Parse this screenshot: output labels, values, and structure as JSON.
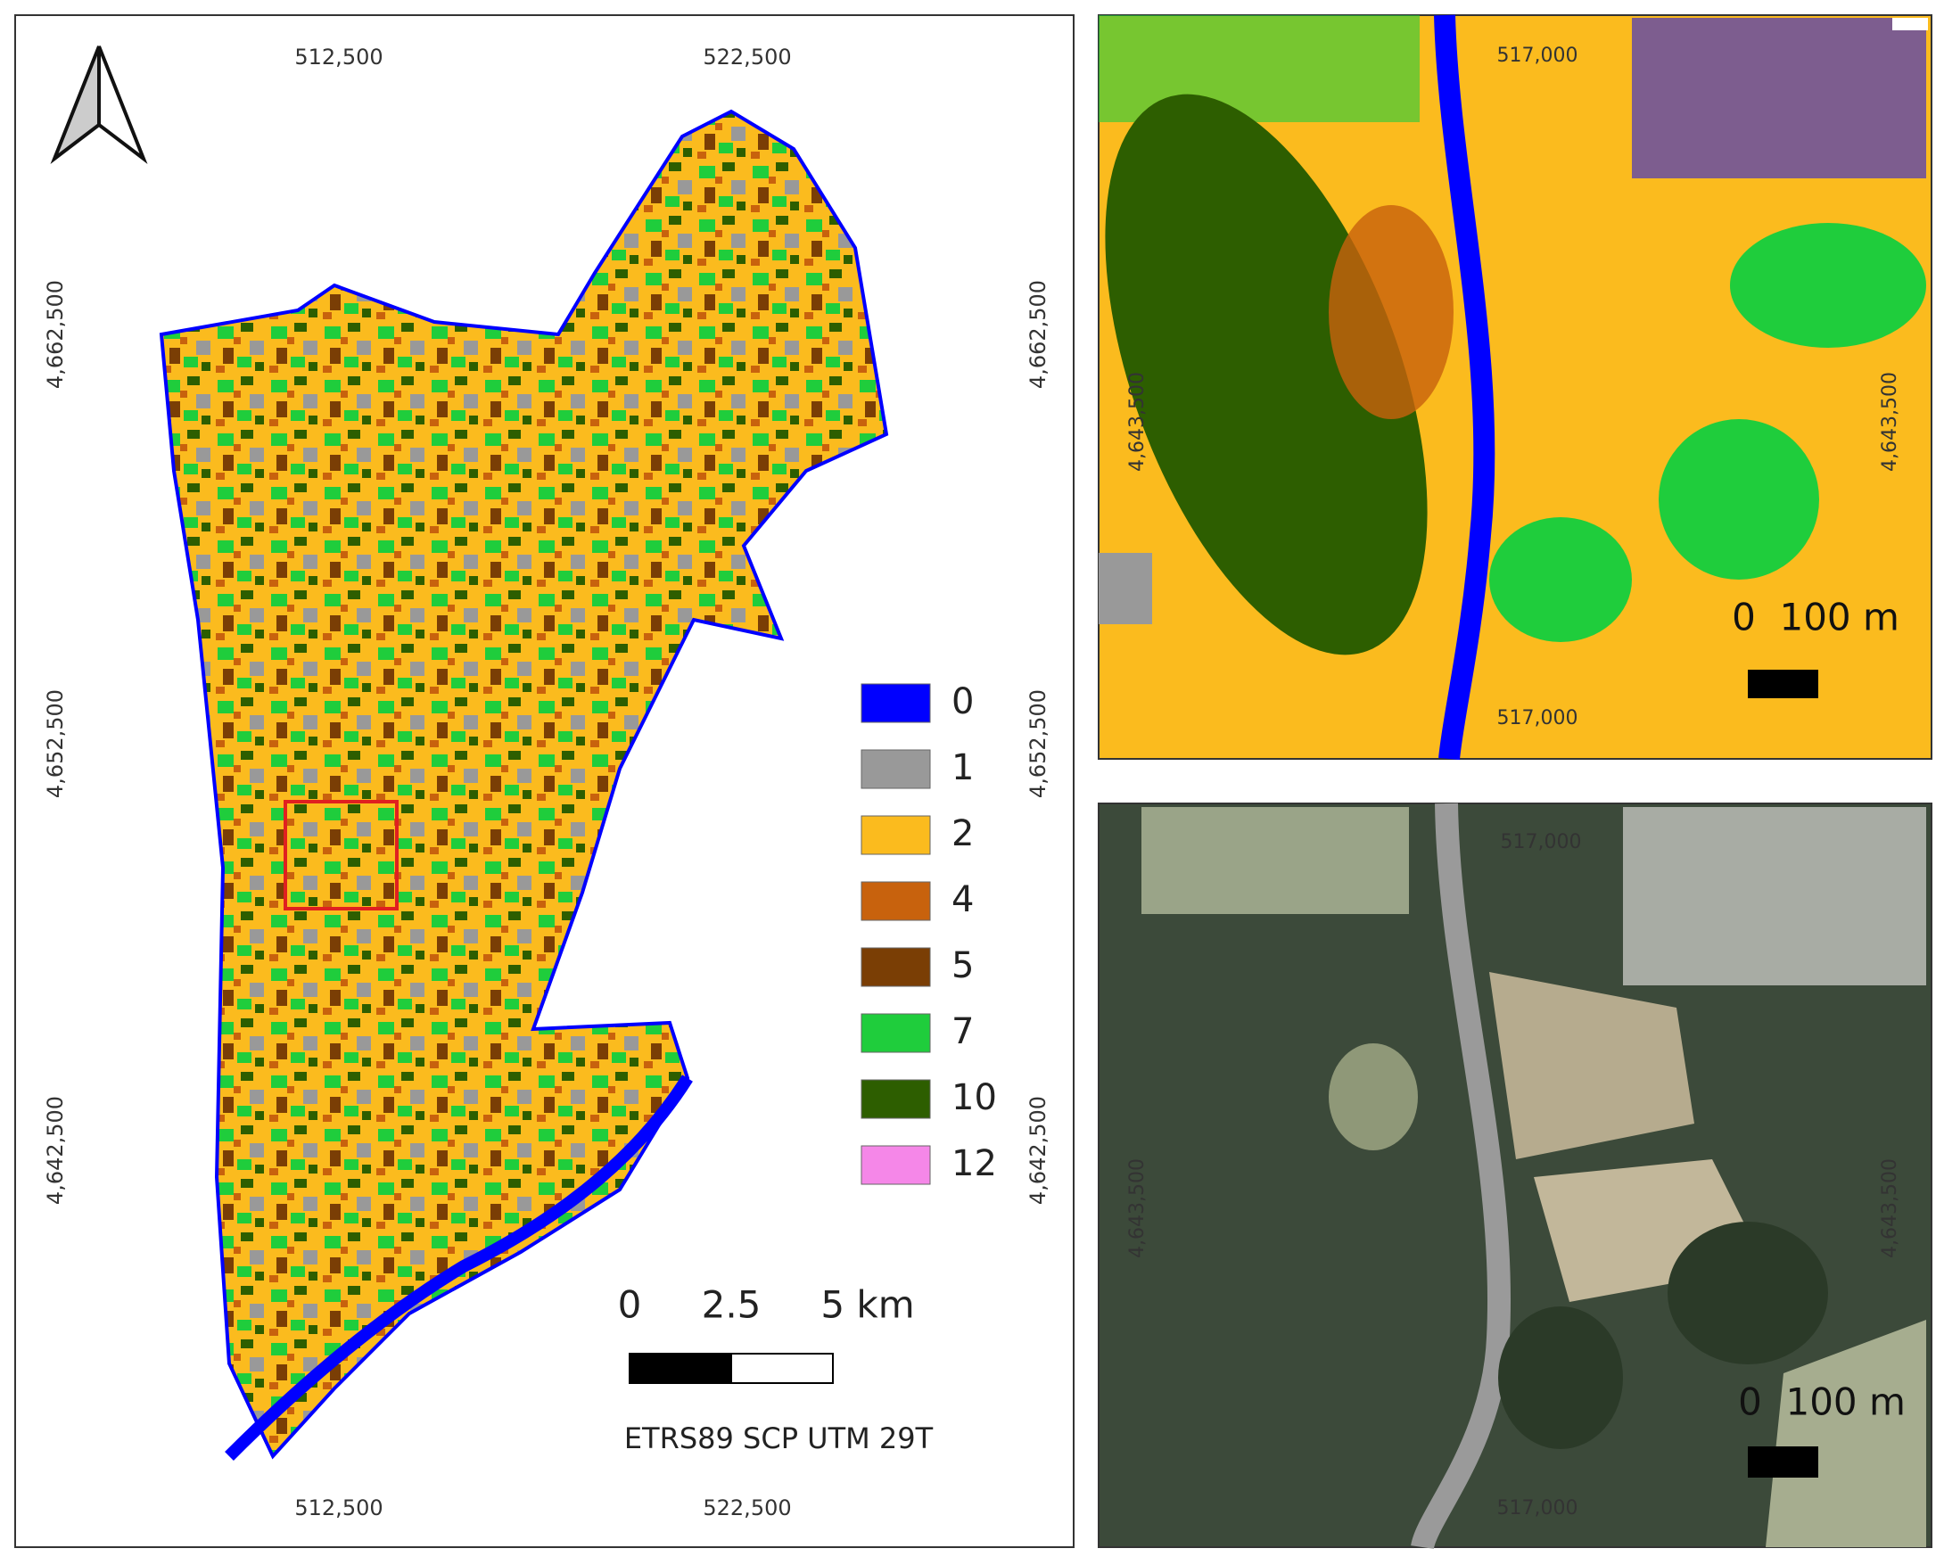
{
  "main_map": {
    "x_labels_top": [
      "512,500",
      "522,500"
    ],
    "x_labels_bottom": [
      "512,500",
      "522,500"
    ],
    "y_labels_left": [
      "4,662,500",
      "4,652,500",
      "4,642,500"
    ],
    "y_labels_right": [
      "4,662,500",
      "4,652,500",
      "4,642,500"
    ],
    "legend": [
      {
        "label": "0",
        "color": "#0000ff"
      },
      {
        "label": "1",
        "color": "#999999"
      },
      {
        "label": "2",
        "color": "#fbbb1e"
      },
      {
        "label": "4",
        "color": "#c8620d"
      },
      {
        "label": "5",
        "color": "#7a3e05"
      },
      {
        "label": "7",
        "color": "#1fcd3c"
      },
      {
        "label": "10",
        "color": "#2d5e00"
      },
      {
        "label": "12",
        "color": "#f587e8"
      }
    ],
    "scale_bar": [
      "0",
      "2.5",
      "5 km"
    ],
    "crs": "ETRS89 SCP UTM 29T"
  },
  "classified_inset": {
    "x_labels": [
      "517,000",
      "517,000"
    ],
    "y_labels": [
      "4,643,500",
      "4,643,500"
    ],
    "scale_bar": "0  100 m"
  },
  "aerial_inset": {
    "x_labels": [
      "517,000",
      "517,000"
    ],
    "y_labels": [
      "4,643,500",
      "4,643,500"
    ],
    "scale_bar": "0  100 m"
  }
}
